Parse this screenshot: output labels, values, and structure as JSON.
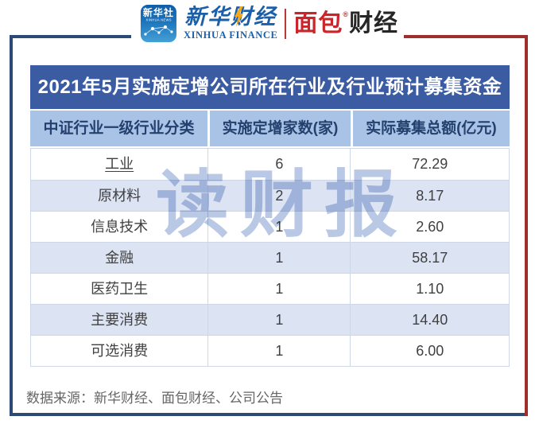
{
  "brand": {
    "xinhua_app": {
      "name_cn": "新华社",
      "name_en": "XINHUA NEWS"
    },
    "xinhua_finance": {
      "name_cn": "新华财经",
      "name_en": "XINHUA FINANCE"
    },
    "mianbao_finance": {
      "part_red": "面包",
      "part_dark": "财经",
      "registered_mark": "®"
    }
  },
  "title": "2021年5月实施定增公司所在行业及行业预计募集资金",
  "table": {
    "headers": [
      "中证行业一级行业分类",
      "实施定增家数(家)",
      "实际募集总额(亿元)"
    ],
    "rows": [
      [
        "工业",
        "6",
        "72.29"
      ],
      [
        "原材料",
        "2",
        "8.17"
      ],
      [
        "信息技术",
        "1",
        "2.60"
      ],
      [
        "金融",
        "1",
        "58.17"
      ],
      [
        "医药卫生",
        "1",
        "1.10"
      ],
      [
        "主要消费",
        "1",
        "14.40"
      ],
      [
        "可选消费",
        "1",
        "6.00"
      ]
    ]
  },
  "watermark": "读财报",
  "footer": {
    "source": "数据来源：新华财经、面包财经、公司公告"
  },
  "colors": {
    "title_bar_blue": "#3b5ca2",
    "header_bg": "#a9c3e6",
    "header_text": "#24406e",
    "alt_row_bg": "#dce3f3",
    "frame_blue": "#2b4a78",
    "frame_red": "#9e2f2d",
    "watermark_blue": "#b9c8e5",
    "brand_blue": "#1b5fa9",
    "brand_red": "#c9252b"
  },
  "chart_data": {
    "type": "table",
    "title": "2021年5月实施定增公司所在行业及行业预计募集资金",
    "columns": [
      "中证行业一级行业分类",
      "实施定增家数(家)",
      "实际募集总额(亿元)"
    ],
    "categories": [
      "工业",
      "原材料",
      "信息技术",
      "金融",
      "医药卫生",
      "主要消费",
      "可选消费"
    ],
    "series": [
      {
        "name": "实施定增家数(家)",
        "values": [
          6,
          2,
          1,
          1,
          1,
          1,
          1
        ]
      },
      {
        "name": "实际募集总额(亿元)",
        "values": [
          72.29,
          8.17,
          2.6,
          58.17,
          1.1,
          14.4,
          6.0
        ]
      }
    ],
    "source": "数据来源：新华财经、面包财经、公司公告"
  }
}
